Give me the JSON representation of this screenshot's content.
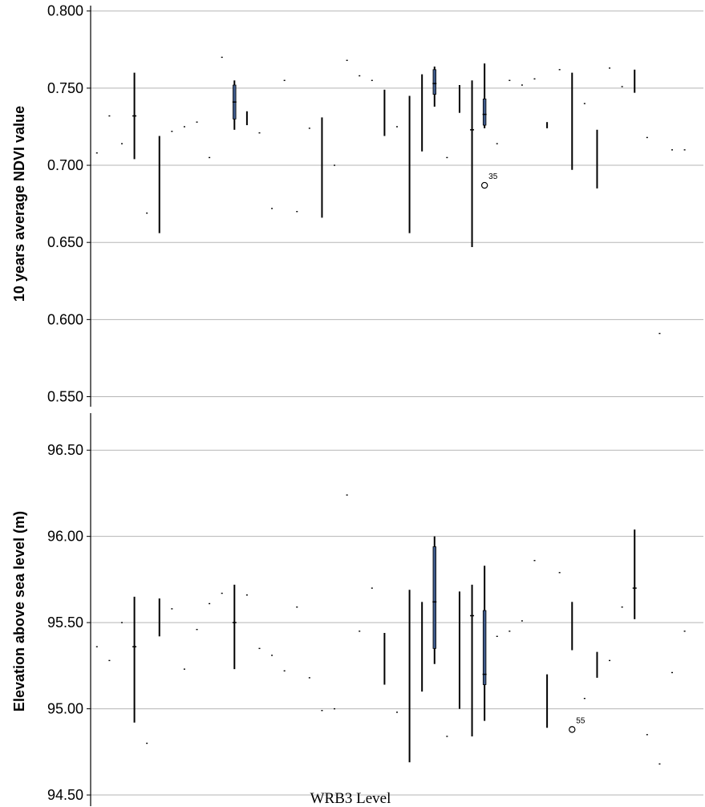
{
  "chart_data": {
    "type": "box",
    "xlabel": "WRB3 Level",
    "x_count": 49,
    "panels": [
      {
        "name": "top",
        "ylabel": "10 years average NDVI value",
        "ylim": [
          0.5435,
          0.8035
        ],
        "yticks": [
          0.55,
          0.6,
          0.65,
          0.7,
          0.75,
          0.8
        ],
        "ytick_labels": [
          "0.550",
          "0.600",
          "0.650",
          "0.700",
          "0.750",
          "0.800"
        ],
        "boxes": [
          {
            "x": 4,
            "low": 0.704,
            "high": 0.76,
            "median": 0.732
          },
          {
            "x": 6,
            "low": 0.656,
            "high": 0.719
          },
          {
            "x": 12,
            "low": 0.723,
            "high": 0.755,
            "q1": 0.73,
            "q3": 0.752,
            "median": 0.741
          },
          {
            "x": 13,
            "low": 0.726,
            "high": 0.735
          },
          {
            "x": 19,
            "low": 0.666,
            "high": 0.731
          },
          {
            "x": 24,
            "low": 0.719,
            "high": 0.749
          },
          {
            "x": 26,
            "low": 0.656,
            "high": 0.745
          },
          {
            "x": 27,
            "low": 0.709,
            "high": 0.759
          },
          {
            "x": 28,
            "low": 0.738,
            "high": 0.764,
            "q1": 0.746,
            "q3": 0.762,
            "median": 0.753
          },
          {
            "x": 30,
            "low": 0.734,
            "high": 0.752
          },
          {
            "x": 31,
            "low": 0.647,
            "high": 0.755,
            "median": 0.723
          },
          {
            "x": 32,
            "low": 0.724,
            "high": 0.766,
            "q1": 0.726,
            "q3": 0.743,
            "median": 0.733
          },
          {
            "x": 37,
            "low": 0.724,
            "high": 0.728
          },
          {
            "x": 39,
            "low": 0.697,
            "high": 0.76
          },
          {
            "x": 41,
            "low": 0.685,
            "high": 0.723
          },
          {
            "x": 44,
            "low": 0.747,
            "high": 0.762
          }
        ],
        "points": [
          {
            "x": 1,
            "y": 0.708
          },
          {
            "x": 2,
            "y": 0.732
          },
          {
            "x": 3,
            "y": 0.714
          },
          {
            "x": 5,
            "y": 0.669
          },
          {
            "x": 7,
            "y": 0.722
          },
          {
            "x": 8,
            "y": 0.725
          },
          {
            "x": 9,
            "y": 0.728
          },
          {
            "x": 10,
            "y": 0.705
          },
          {
            "x": 11,
            "y": 0.77
          },
          {
            "x": 14,
            "y": 0.721
          },
          {
            "x": 15,
            "y": 0.672
          },
          {
            "x": 16,
            "y": 0.755
          },
          {
            "x": 17,
            "y": 0.67
          },
          {
            "x": 18,
            "y": 0.724
          },
          {
            "x": 20,
            "y": 0.7
          },
          {
            "x": 21,
            "y": 0.768
          },
          {
            "x": 22,
            "y": 0.758
          },
          {
            "x": 23,
            "y": 0.755
          },
          {
            "x": 25,
            "y": 0.725
          },
          {
            "x": 29,
            "y": 0.705
          },
          {
            "x": 33,
            "y": 0.714
          },
          {
            "x": 34,
            "y": 0.755
          },
          {
            "x": 35,
            "y": 0.752
          },
          {
            "x": 36,
            "y": 0.756
          },
          {
            "x": 38,
            "y": 0.762
          },
          {
            "x": 40,
            "y": 0.74
          },
          {
            "x": 42,
            "y": 0.763
          },
          {
            "x": 43,
            "y": 0.751
          },
          {
            "x": 45,
            "y": 0.718
          },
          {
            "x": 46,
            "y": 0.591
          },
          {
            "x": 47,
            "y": 0.71
          },
          {
            "x": 48,
            "y": 0.71
          }
        ],
        "outliers": [
          {
            "x": 32,
            "y": 0.687,
            "label": "35"
          }
        ]
      },
      {
        "name": "bottom",
        "ylabel": "Elevation above sea level (m)",
        "ylim": [
          94.435,
          96.715
        ],
        "yticks": [
          94.5,
          95.0,
          95.5,
          96.0,
          96.5
        ],
        "ytick_labels": [
          "94.50",
          "95.00",
          "95.50",
          "96.00",
          "96.50"
        ],
        "boxes": [
          {
            "x": 4,
            "low": 94.92,
            "high": 95.65,
            "median": 95.36
          },
          {
            "x": 6,
            "low": 95.42,
            "high": 95.64
          },
          {
            "x": 12,
            "low": 95.23,
            "high": 95.72,
            "median": 95.5
          },
          {
            "x": 24,
            "low": 95.14,
            "high": 95.44
          },
          {
            "x": 26,
            "low": 94.69,
            "high": 95.69
          },
          {
            "x": 27,
            "low": 95.1,
            "high": 95.62
          },
          {
            "x": 28,
            "low": 95.26,
            "high": 96.0,
            "q1": 95.35,
            "q3": 95.94,
            "median": 95.62
          },
          {
            "x": 30,
            "low": 95.0,
            "high": 95.68
          },
          {
            "x": 31,
            "low": 94.84,
            "high": 95.72,
            "median": 95.54
          },
          {
            "x": 32,
            "low": 94.93,
            "high": 95.83,
            "q1": 95.14,
            "q3": 95.57,
            "median": 95.2
          },
          {
            "x": 37,
            "low": 94.89,
            "high": 95.2
          },
          {
            "x": 39,
            "low": 95.34,
            "high": 95.62
          },
          {
            "x": 41,
            "low": 95.18,
            "high": 95.33
          },
          {
            "x": 44,
            "low": 95.52,
            "high": 96.04,
            "median": 95.7
          }
        ],
        "points": [
          {
            "x": 1,
            "y": 95.36
          },
          {
            "x": 2,
            "y": 95.28
          },
          {
            "x": 3,
            "y": 95.5
          },
          {
            "x": 5,
            "y": 94.8
          },
          {
            "x": 7,
            "y": 95.58
          },
          {
            "x": 8,
            "y": 95.23
          },
          {
            "x": 9,
            "y": 95.46
          },
          {
            "x": 10,
            "y": 95.61
          },
          {
            "x": 11,
            "y": 95.67
          },
          {
            "x": 13,
            "y": 95.66
          },
          {
            "x": 14,
            "y": 95.35
          },
          {
            "x": 15,
            "y": 95.31
          },
          {
            "x": 16,
            "y": 95.22
          },
          {
            "x": 17,
            "y": 95.59
          },
          {
            "x": 18,
            "y": 95.18
          },
          {
            "x": 19,
            "y": 94.99
          },
          {
            "x": 20,
            "y": 95.0
          },
          {
            "x": 21,
            "y": 96.24
          },
          {
            "x": 22,
            "y": 95.45
          },
          {
            "x": 23,
            "y": 95.7
          },
          {
            "x": 25,
            "y": 94.98
          },
          {
            "x": 29,
            "y": 94.84
          },
          {
            "x": 33,
            "y": 95.42
          },
          {
            "x": 34,
            "y": 95.45
          },
          {
            "x": 35,
            "y": 95.51
          },
          {
            "x": 36,
            "y": 95.86
          },
          {
            "x": 38,
            "y": 95.79
          },
          {
            "x": 40,
            "y": 95.06
          },
          {
            "x": 42,
            "y": 95.28
          },
          {
            "x": 43,
            "y": 95.59
          },
          {
            "x": 45,
            "y": 94.85
          },
          {
            "x": 46,
            "y": 94.68
          },
          {
            "x": 47,
            "y": 95.21
          },
          {
            "x": 48,
            "y": 95.45
          }
        ],
        "outliers": [
          {
            "x": 39,
            "y": 94.88,
            "label": "55"
          }
        ]
      }
    ]
  }
}
